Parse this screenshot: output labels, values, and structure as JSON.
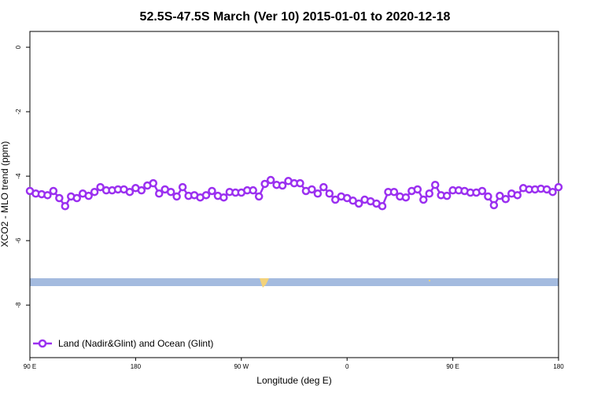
{
  "chart_data": {
    "type": "line",
    "title": "52.5S-47.5S March (Ver 10)   2015-01-01 to 2020-12-18",
    "x_label": "Longitude (deg E)",
    "y_label": "XCO2 - MLO trend (ppm)",
    "x": [
      90,
      95,
      100,
      105,
      110,
      115,
      120,
      125,
      130,
      135,
      140,
      145,
      150,
      155,
      160,
      165,
      170,
      175,
      180,
      185,
      190,
      195,
      200,
      205,
      210,
      215,
      220,
      225,
      230,
      235,
      240,
      245,
      250,
      255,
      260,
      265,
      270,
      275,
      280,
      285,
      290,
      295,
      300,
      305,
      310,
      315,
      320,
      325,
      330,
      335,
      340,
      345,
      350,
      355,
      360,
      365,
      370,
      375,
      380,
      385,
      390,
      395,
      400,
      405,
      410,
      415,
      420,
      425,
      430,
      435,
      440,
      445,
      450,
      455,
      460,
      465,
      470,
      475,
      480,
      485,
      490,
      495,
      500,
      505,
      510,
      515,
      520,
      525,
      530,
      535,
      540
    ],
    "series": [
      {
        "name": "Land (Nadir&Glint) and Ocean (Glint)",
        "color": "#9b30f0",
        "values": [
          -4.46,
          -4.54,
          -4.56,
          -4.59,
          -4.46,
          -4.68,
          -4.93,
          -4.63,
          -4.68,
          -4.54,
          -4.61,
          -4.49,
          -4.34,
          -4.44,
          -4.44,
          -4.41,
          -4.41,
          -4.49,
          -4.37,
          -4.44,
          -4.29,
          -4.22,
          -4.54,
          -4.41,
          -4.49,
          -4.63,
          -4.34,
          -4.61,
          -4.59,
          -4.66,
          -4.59,
          -4.46,
          -4.61,
          -4.66,
          -4.49,
          -4.51,
          -4.51,
          -4.44,
          -4.44,
          -4.63,
          -4.24,
          -4.12,
          -4.27,
          -4.29,
          -4.15,
          -4.22,
          -4.22,
          -4.46,
          -4.41,
          -4.54,
          -4.34,
          -4.54,
          -4.73,
          -4.63,
          -4.68,
          -4.76,
          -4.85,
          -4.73,
          -4.78,
          -4.85,
          -4.93,
          -4.49,
          -4.49,
          -4.63,
          -4.66,
          -4.46,
          -4.41,
          -4.73,
          -4.54,
          -4.27,
          -4.59,
          -4.61,
          -4.44,
          -4.44,
          -4.46,
          -4.51,
          -4.51,
          -4.46,
          -4.63,
          -4.9,
          -4.61,
          -4.71,
          -4.54,
          -4.59,
          -4.37,
          -4.41,
          -4.41,
          -4.39,
          -4.41,
          -4.49,
          -4.34
        ]
      }
    ],
    "xlim": [
      90,
      540
    ],
    "xticks": [
      {
        "value": 90,
        "label": "90 E"
      },
      180,
      {
        "value": 270,
        "label": "90 W"
      },
      {
        "value": 360,
        "label": "0"
      },
      {
        "value": 450,
        "label": "90 E"
      },
      {
        "value": 540,
        "label": "180"
      }
    ],
    "ylim": [
      -9.63,
      0.49
    ],
    "yticks": [
      0,
      -2,
      -4,
      -6,
      -8
    ],
    "legend": "bottom-left"
  }
}
